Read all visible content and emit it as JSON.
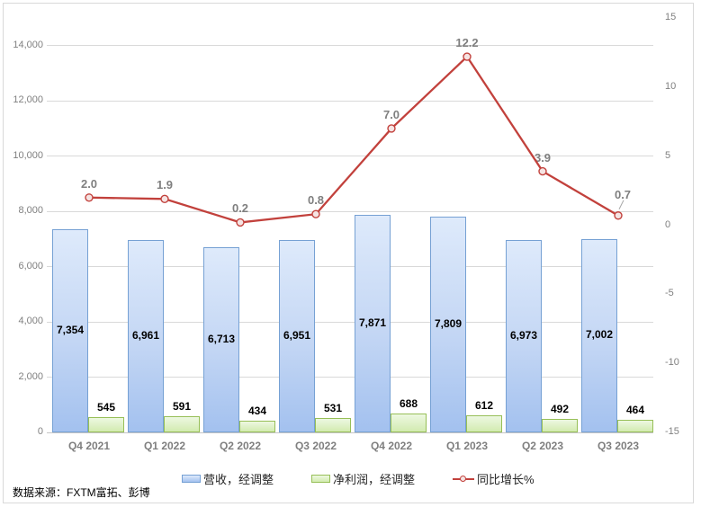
{
  "source": {
    "text": "数据来源：FXTM富拓、彭博"
  },
  "legend": {
    "items": [
      {
        "label": "营收，经调整",
        "swatch": "bar-blue"
      },
      {
        "label": "净利润，经调整",
        "swatch": "bar-green"
      },
      {
        "label": "同比增长%",
        "swatch": "line-red"
      }
    ]
  },
  "colors": {
    "bar_blue_top": "#DEEAFB",
    "bar_blue_bottom": "#A3C1EF",
    "bar_blue_border": "#76A1D4",
    "bar_green_top": "#EDF8E1",
    "bar_green_bottom": "#D2EBAF",
    "bar_green_border": "#97BF57",
    "line_red": "#C2413C",
    "marker_fill": "#F5E4E3",
    "leader": "#A6A6A6",
    "gridline": "#D9D9D9",
    "axis_line": "#C6C6C6",
    "tick_text": "#808080",
    "category_text": "#7F7F7F",
    "line_label_text": "#7F7F7F",
    "bar_label_text": "#000000"
  },
  "chart_data": {
    "type": "combo",
    "categories": [
      "Q4 2021",
      "Q1 2022",
      "Q2 2022",
      "Q3 2022",
      "Q4 2022",
      "Q1 2023",
      "Q2 2023",
      "Q3 2023"
    ],
    "series": [
      {
        "name": "营收，经调整",
        "type": "bar",
        "axis": "left",
        "values": [
          7354,
          6961,
          6713,
          6951,
          7871,
          7809,
          6973,
          7002
        ],
        "labels": [
          "7,354",
          "6,961",
          "6,713",
          "6,951",
          "7,871",
          "7,809",
          "6,973",
          "7,002"
        ]
      },
      {
        "name": "净利润，经调整",
        "type": "bar",
        "axis": "left",
        "values": [
          545,
          591,
          434,
          531,
          688,
          612,
          492,
          464
        ],
        "labels": [
          "545",
          "591",
          "434",
          "531",
          "688",
          "612",
          "492",
          "464"
        ]
      },
      {
        "name": "同比增长%",
        "type": "line",
        "axis": "right",
        "values": [
          2.0,
          1.9,
          0.2,
          0.8,
          7.0,
          12.2,
          3.9,
          0.7
        ],
        "labels": [
          "2.0",
          "1.9",
          "0.2",
          "0.8",
          "7.0",
          "12.2",
          "3.9",
          "0.7"
        ]
      }
    ],
    "left_axis": {
      "min": 0,
      "max": 15000,
      "major": 2000,
      "tick_values": [
        0,
        2000,
        4000,
        6000,
        8000,
        10000,
        12000,
        14000
      ],
      "tick_labels": [
        "0",
        "2,000",
        "4,000",
        "6,000",
        "8,000",
        "10,000",
        "12,000",
        "14,000"
      ]
    },
    "right_axis": {
      "min": -15,
      "max": 15,
      "major": 5,
      "tick_values": [
        -15,
        -10,
        -5,
        0,
        5,
        10,
        15
      ],
      "tick_labels": [
        "-15",
        "-10",
        "-5",
        "0",
        "5",
        "10",
        "15"
      ]
    },
    "grid": "horizontal-left-axis-ticks",
    "legend_position": "bottom"
  }
}
